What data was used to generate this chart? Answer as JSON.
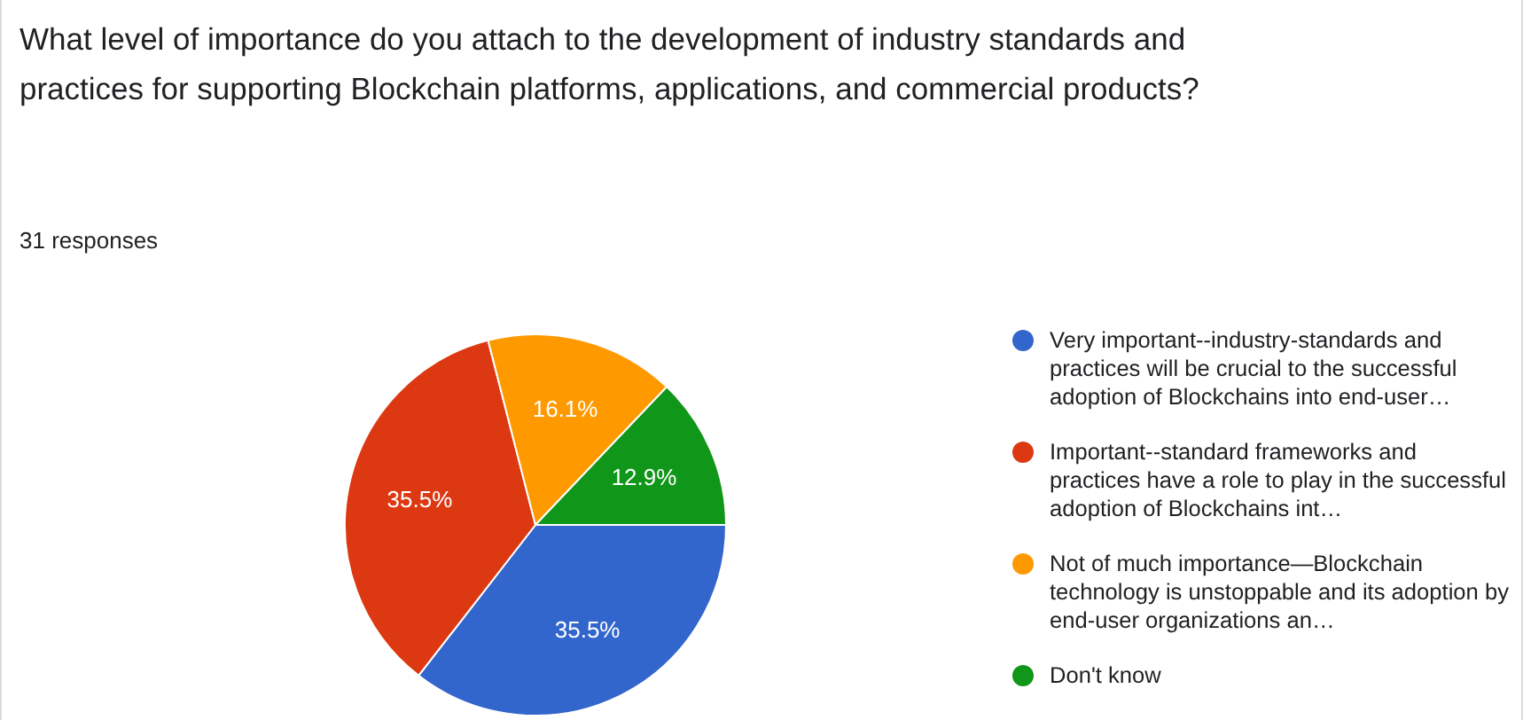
{
  "chart_data": {
    "type": "pie",
    "title": "What level of importance do you attach to the development of industry standards and practices for supporting Blockchain platforms, applications, and commercial products?",
    "subtitle": "31 responses",
    "categories": [
      "Very important--industry-standards and practices will be crucial to the successful adoption of Blockchains into end-user…",
      "Important--standard frameworks and practices have a role to play in the successful adoption of Blockchains int…",
      "Not of much importance—Blockchain technology is unstoppable and its adoption by end-user organizations an…",
      "Don't know"
    ],
    "values": [
      35.5,
      35.5,
      16.1,
      12.9
    ],
    "colors": [
      "#3366cc",
      "#dc3912",
      "#ff9900",
      "#109618"
    ],
    "value_labels": [
      "35.5%",
      "35.5%",
      "16.1%",
      "12.9%"
    ],
    "legend": "right"
  }
}
